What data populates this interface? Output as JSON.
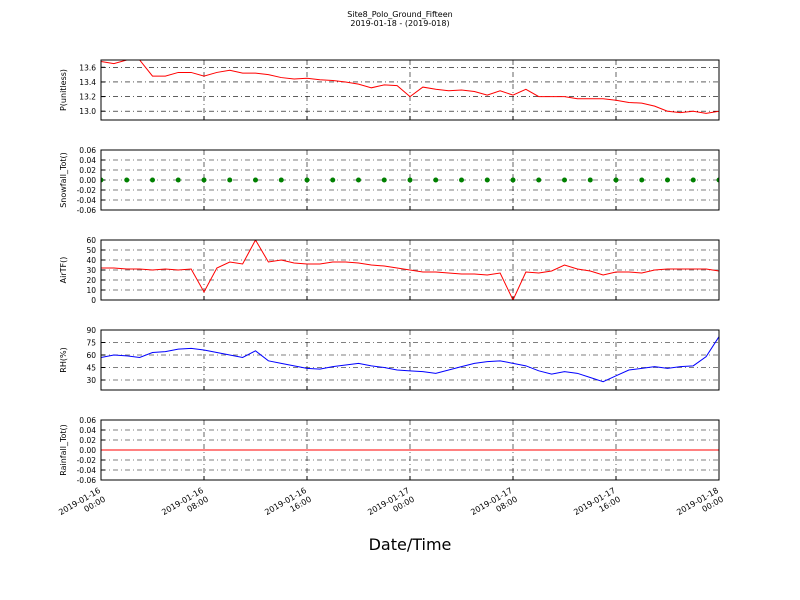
{
  "chart_data": [
    {
      "type": "line",
      "title": "Site8_Polo_Ground_Fifteen",
      "subtitle": "2019-01-18 - (2019-018)",
      "ylabel": "P(unitless)",
      "color": "#ff0000",
      "x": [
        "2019-01-16 00:00",
        "2019-01-16 01:00",
        "2019-01-16 02:00",
        "2019-01-16 03:00",
        "2019-01-16 04:00",
        "2019-01-16 05:00",
        "2019-01-16 06:00",
        "2019-01-16 07:00",
        "2019-01-16 08:00",
        "2019-01-16 09:00",
        "2019-01-16 10:00",
        "2019-01-16 11:00",
        "2019-01-16 12:00",
        "2019-01-16 13:00",
        "2019-01-16 14:00",
        "2019-01-16 15:00",
        "2019-01-16 16:00",
        "2019-01-16 17:00",
        "2019-01-16 18:00",
        "2019-01-16 19:00",
        "2019-01-16 20:00",
        "2019-01-16 21:00",
        "2019-01-16 22:00",
        "2019-01-16 23:00",
        "2019-01-17 00:00",
        "2019-01-17 01:00",
        "2019-01-17 02:00",
        "2019-01-17 03:00",
        "2019-01-17 04:00",
        "2019-01-17 05:00",
        "2019-01-17 06:00",
        "2019-01-17 07:00",
        "2019-01-17 08:00",
        "2019-01-17 09:00",
        "2019-01-17 10:00",
        "2019-01-17 11:00",
        "2019-01-17 12:00",
        "2019-01-17 13:00",
        "2019-01-17 14:00",
        "2019-01-17 15:00",
        "2019-01-17 16:00",
        "2019-01-17 17:00",
        "2019-01-17 18:00",
        "2019-01-17 19:00",
        "2019-01-17 20:00",
        "2019-01-17 21:00",
        "2019-01-17 22:00",
        "2019-01-17 23:00",
        "2019-01-18 00:00"
      ],
      "values": [
        13.68,
        13.65,
        13.7,
        13.7,
        13.48,
        13.48,
        13.53,
        13.53,
        13.48,
        13.53,
        13.56,
        13.52,
        13.52,
        13.5,
        13.46,
        13.44,
        13.45,
        13.43,
        13.42,
        13.4,
        13.37,
        13.32,
        13.36,
        13.35,
        13.2,
        13.33,
        13.3,
        13.28,
        13.29,
        13.27,
        13.22,
        13.28,
        13.22,
        13.3,
        13.2,
        13.2,
        13.2,
        13.17,
        13.17,
        13.17,
        13.15,
        13.12,
        13.11,
        13.07,
        13.0,
        12.98,
        13.0,
        12.97,
        13.0
      ],
      "ylim": [
        12.88,
        13.7
      ],
      "yticks": [
        {
          "value": 13,
          "label": "13.0"
        },
        13.2,
        13.4,
        13.6
      ],
      "grid": true
    },
    {
      "type": "scatter",
      "ylabel": "Snowfall_Tot()",
      "color": "#008000",
      "x": [
        "2019-01-16 00:00",
        "2019-01-16 02:00",
        "2019-01-16 04:00",
        "2019-01-16 06:00",
        "2019-01-16 08:00",
        "2019-01-16 10:00",
        "2019-01-16 12:00",
        "2019-01-16 14:00",
        "2019-01-16 16:00",
        "2019-01-16 18:00",
        "2019-01-16 20:00",
        "2019-01-16 22:00",
        "2019-01-17 00:00",
        "2019-01-17 02:00",
        "2019-01-17 04:00",
        "2019-01-17 06:00",
        "2019-01-17 08:00",
        "2019-01-17 10:00",
        "2019-01-17 12:00",
        "2019-01-17 14:00",
        "2019-01-17 16:00",
        "2019-01-17 18:00",
        "2019-01-17 20:00",
        "2019-01-17 22:00",
        "2019-01-18 00:00"
      ],
      "values": [
        0,
        0,
        0,
        0,
        0,
        0,
        0,
        0,
        0,
        0,
        0,
        0,
        0,
        0,
        0,
        0,
        0,
        0,
        0,
        0,
        0,
        0,
        0,
        0,
        0
      ],
      "ylim": [
        -0.06,
        0.06
      ],
      "yticks": [
        -0.06,
        -0.04,
        -0.02,
        {
          "value": 0,
          "label": "0.00"
        },
        0.02,
        0.04,
        0.06
      ],
      "grid": true
    },
    {
      "type": "line",
      "ylabel": "AirTF()",
      "color": "#ff0000",
      "x": [
        "2019-01-16 00:00",
        "2019-01-16 01:00",
        "2019-01-16 02:00",
        "2019-01-16 03:00",
        "2019-01-16 04:00",
        "2019-01-16 05:00",
        "2019-01-16 06:00",
        "2019-01-16 07:00",
        "2019-01-16 08:00",
        "2019-01-16 09:00",
        "2019-01-16 10:00",
        "2019-01-16 11:00",
        "2019-01-16 12:00",
        "2019-01-16 13:00",
        "2019-01-16 14:00",
        "2019-01-16 15:00",
        "2019-01-16 16:00",
        "2019-01-16 17:00",
        "2019-01-16 18:00",
        "2019-01-16 19:00",
        "2019-01-16 20:00",
        "2019-01-16 21:00",
        "2019-01-16 22:00",
        "2019-01-16 23:00",
        "2019-01-17 00:00",
        "2019-01-17 01:00",
        "2019-01-17 02:00",
        "2019-01-17 03:00",
        "2019-01-17 04:00",
        "2019-01-17 05:00",
        "2019-01-17 06:00",
        "2019-01-17 07:00",
        "2019-01-17 08:00",
        "2019-01-17 09:00",
        "2019-01-17 10:00",
        "2019-01-17 11:00",
        "2019-01-17 12:00",
        "2019-01-17 13:00",
        "2019-01-17 14:00",
        "2019-01-17 15:00",
        "2019-01-17 16:00",
        "2019-01-17 17:00",
        "2019-01-17 18:00",
        "2019-01-17 19:00",
        "2019-01-17 20:00",
        "2019-01-17 21:00",
        "2019-01-17 22:00",
        "2019-01-17 23:00",
        "2019-01-18 00:00"
      ],
      "values": [
        32,
        32,
        31,
        31,
        30,
        31,
        30,
        31,
        8,
        32,
        38,
        36,
        60,
        38,
        40,
        37,
        36,
        36,
        38,
        38,
        37,
        35,
        34,
        32,
        30,
        28,
        28,
        27,
        26,
        26,
        25,
        27,
        0,
        28,
        27,
        29,
        35,
        31,
        29,
        25,
        28,
        28,
        27,
        30,
        31,
        31,
        31,
        31,
        29
      ],
      "ylim": [
        0,
        60
      ],
      "yticks": [
        0,
        10,
        20,
        30,
        40,
        50,
        60
      ],
      "grid": true
    },
    {
      "type": "line",
      "ylabel": "RH(%)",
      "color": "#0000ff",
      "x": [
        "2019-01-16 00:00",
        "2019-01-16 01:00",
        "2019-01-16 02:00",
        "2019-01-16 03:00",
        "2019-01-16 04:00",
        "2019-01-16 05:00",
        "2019-01-16 06:00",
        "2019-01-16 07:00",
        "2019-01-16 08:00",
        "2019-01-16 09:00",
        "2019-01-16 10:00",
        "2019-01-16 11:00",
        "2019-01-16 12:00",
        "2019-01-16 13:00",
        "2019-01-16 14:00",
        "2019-01-16 15:00",
        "2019-01-16 16:00",
        "2019-01-16 17:00",
        "2019-01-16 18:00",
        "2019-01-16 19:00",
        "2019-01-16 20:00",
        "2019-01-16 21:00",
        "2019-01-16 22:00",
        "2019-01-16 23:00",
        "2019-01-17 00:00",
        "2019-01-17 01:00",
        "2019-01-17 02:00",
        "2019-01-17 03:00",
        "2019-01-17 04:00",
        "2019-01-17 05:00",
        "2019-01-17 06:00",
        "2019-01-17 07:00",
        "2019-01-17 08:00",
        "2019-01-17 09:00",
        "2019-01-17 10:00",
        "2019-01-17 11:00",
        "2019-01-17 12:00",
        "2019-01-17 13:00",
        "2019-01-17 14:00",
        "2019-01-17 15:00",
        "2019-01-17 16:00",
        "2019-01-17 17:00",
        "2019-01-17 18:00",
        "2019-01-17 19:00",
        "2019-01-17 20:00",
        "2019-01-17 21:00",
        "2019-01-17 22:00",
        "2019-01-17 23:00",
        "2019-01-18 00:00"
      ],
      "values": [
        57,
        60,
        59,
        57,
        63,
        64,
        67,
        68,
        66,
        63,
        60,
        57,
        65,
        53,
        50,
        47,
        44,
        43,
        46,
        48,
        50,
        47,
        45,
        42,
        41,
        40,
        38,
        42,
        46,
        50,
        52,
        53,
        50,
        47,
        41,
        37,
        40,
        38,
        33,
        28,
        35,
        42,
        44,
        46,
        44,
        46,
        47,
        58,
        82
      ],
      "ylim": [
        18,
        90
      ],
      "yticks": [
        30,
        45,
        60,
        75,
        90
      ],
      "grid": true
    },
    {
      "type": "line",
      "ylabel": "Rainfall_Tot()",
      "color": "#ff0000",
      "xlabel": "Date/Time",
      "x": [
        "2019-01-16 00:00",
        "2019-01-16 02:00",
        "2019-01-16 04:00",
        "2019-01-16 06:00",
        "2019-01-16 08:00",
        "2019-01-16 10:00",
        "2019-01-16 12:00",
        "2019-01-16 14:00",
        "2019-01-16 16:00",
        "2019-01-16 18:00",
        "2019-01-16 20:00",
        "2019-01-16 22:00",
        "2019-01-17 00:00",
        "2019-01-17 02:00",
        "2019-01-17 04:00",
        "2019-01-17 06:00",
        "2019-01-17 08:00",
        "2019-01-17 10:00",
        "2019-01-17 12:00",
        "2019-01-17 14:00",
        "2019-01-17 16:00",
        "2019-01-17 18:00",
        "2019-01-17 20:00",
        "2019-01-17 22:00",
        "2019-01-18 00:00"
      ],
      "values": [
        0,
        0,
        0,
        0,
        0,
        0,
        0,
        0,
        0,
        0,
        0,
        0,
        0,
        0,
        0,
        0,
        0,
        0,
        0,
        0,
        0,
        0,
        0,
        0,
        0
      ],
      "ylim": [
        -0.06,
        0.06
      ],
      "yticks": [
        -0.06,
        -0.04,
        -0.02,
        {
          "value": 0,
          "label": "0.00"
        },
        0.02,
        0.04,
        0.06
      ],
      "grid": true,
      "xlim": [
        "2019-01-16 00:00",
        "2019-01-18 00:00"
      ],
      "xticks": [
        "2019-01-16 00:00",
        "2019-01-16 08:00",
        "2019-01-16 16:00",
        "2019-01-17 00:00",
        "2019-01-17 08:00",
        "2019-01-17 16:00",
        "2019-01-18 00:00"
      ]
    }
  ]
}
